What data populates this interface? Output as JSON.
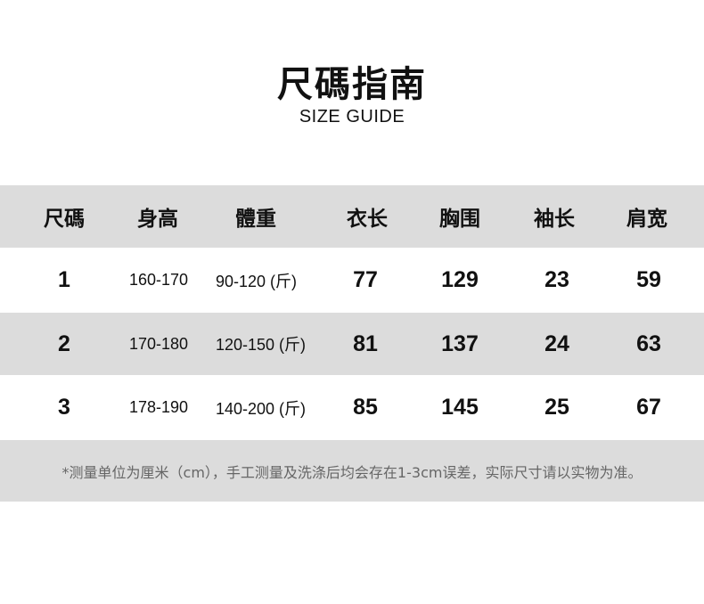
{
  "title": "尺碼指南",
  "subtitle": "SIZE GUIDE",
  "table": {
    "headers": [
      "尺碼",
      "身高",
      "體重",
      "衣长",
      "胸围",
      "袖长",
      "肩宽"
    ],
    "rows": [
      [
        "1",
        "160-170",
        "90-120 (斤)",
        "77",
        "129",
        "23",
        "59"
      ],
      [
        "2",
        "170-180",
        "120-150 (斤)",
        "81",
        "137",
        "24",
        "63"
      ],
      [
        "3",
        "178-190",
        "140-200 (斤)",
        "85",
        "145",
        "25",
        "67"
      ]
    ]
  },
  "note": "*测量单位为厘米（cm），手工测量及洗涤后均会存在1-3cm误差，实际尺寸请以实物为准。",
  "colors": {
    "band": "#dcdcdc",
    "note_text": "#666666"
  }
}
